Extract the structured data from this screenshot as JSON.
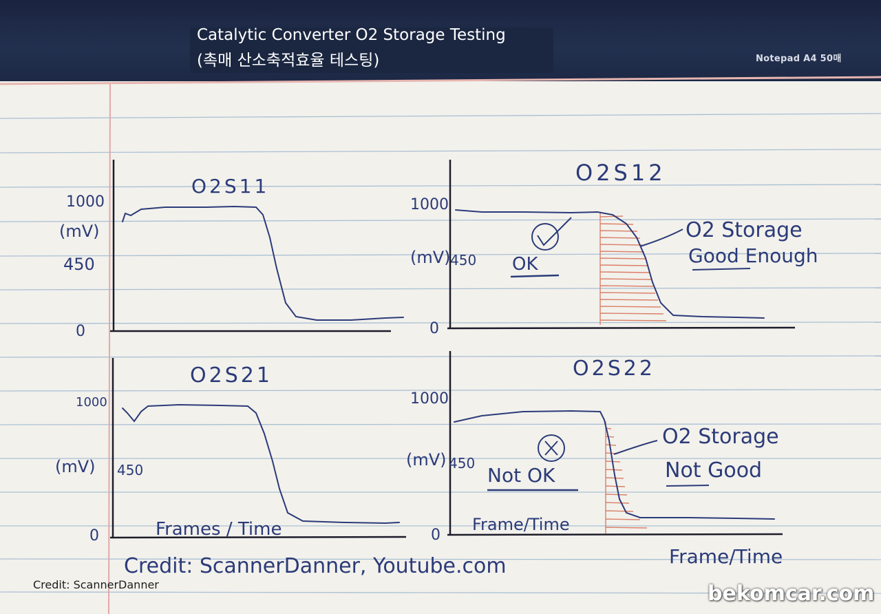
{
  "header": {
    "title_en": "Catalytic Converter O2 Storage Testing",
    "title_ko": "(촉매 산소축적효율 테스팅)",
    "notebook_brand": "Notepad A4 50매"
  },
  "panels": {
    "top_left": {
      "title": "O2S11",
      "y_top": "1000",
      "y_unit": "(mV)",
      "y_mid": "450",
      "y_zero": "0"
    },
    "top_right": {
      "title": "O2S12",
      "y_top": "1000",
      "y_unit": "(mV)",
      "y_mid": "450",
      "y_zero": "0",
      "mark": "OK",
      "note_line1": "O2 Storage",
      "note_line2": "Good Enough"
    },
    "bottom_left": {
      "title": "O2S21",
      "y_top": "1000",
      "y_unit": "(mV)",
      "y_mid": "450",
      "y_zero": "0",
      "x_label": "Frames / Time"
    },
    "bottom_right": {
      "title": "O2S22",
      "y_top": "1000",
      "y_unit": "(mV)",
      "y_mid": "450",
      "y_zero": "0",
      "mark": "Not OK",
      "note_line1": "O2 Storage",
      "note_line2": "Not Good",
      "x_label": "Frame/Time"
    }
  },
  "handwritten_credit": "Credit: ScannerDanner, Youtube.com",
  "handwritten_axis_label": "Frame/Time",
  "credit_caption": "Credit: ScannerDanner",
  "watermark": "bekomcar.com",
  "colors": {
    "ink": "#2b3a78",
    "hatch": "#d9735a",
    "rule_line": "#9fb7cf",
    "margin_line": "#e2a9a9",
    "paper": "#f3f1ec"
  }
}
